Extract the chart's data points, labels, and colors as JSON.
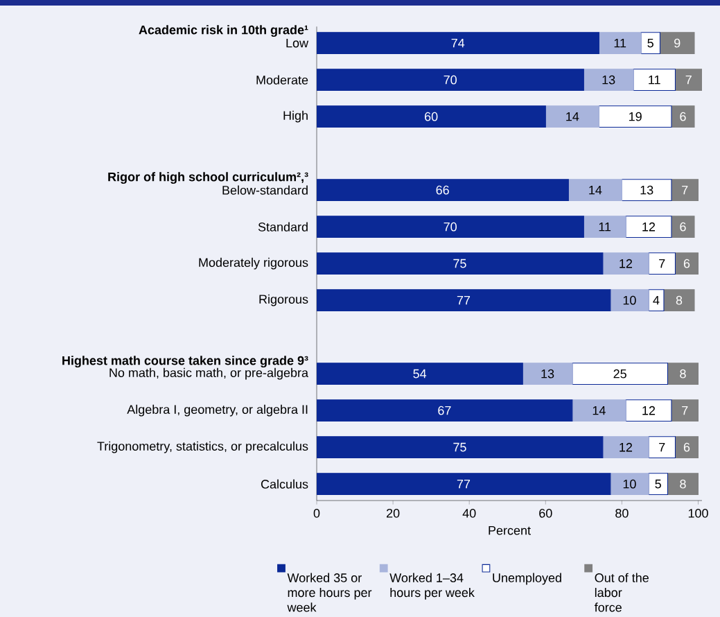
{
  "chart_data": {
    "type": "bar",
    "orientation": "horizontal",
    "stacked": true,
    "categories": [
      "Academic risk in 10th grade¹",
      "Low",
      "Moderate",
      "High",
      "Rigor of high school curriculum²,³",
      "Below-standard",
      "Standard",
      "Moderately rigorous",
      "Rigorous",
      "Highest math course taken since grade 9³",
      "No math, basic math, or pre-algebra",
      "Algebra I, geometry, or algebra II",
      "Trigonometry, statistics, or precalculus",
      "Calculus"
    ],
    "series": [
      {
        "name": "Worked 35 or more hours per week",
        "color": "#0b2996",
        "values": [
          null,
          74,
          70,
          60,
          null,
          66,
          70,
          75,
          77,
          null,
          54,
          67,
          75,
          77
        ]
      },
      {
        "name": "Worked 1–34 hours per week",
        "color": "#a8b4dc",
        "values": [
          null,
          11,
          13,
          14,
          null,
          14,
          11,
          12,
          10,
          null,
          13,
          14,
          12,
          10
        ]
      },
      {
        "name": "Unemployed",
        "color": "#ffffff",
        "values": [
          null,
          5,
          11,
          19,
          null,
          13,
          12,
          7,
          4,
          null,
          25,
          12,
          7,
          5
        ]
      },
      {
        "name": "Out of the labor force",
        "color": "#808080",
        "values": [
          null,
          9,
          7,
          6,
          null,
          7,
          6,
          6,
          8,
          null,
          8,
          7,
          6,
          8
        ]
      }
    ],
    "xlim": [
      0,
      101
    ],
    "xticks": [
      0,
      20,
      40,
      60,
      80,
      100
    ],
    "xlabel": "Percent",
    "data_labels": true,
    "legend": "bottom",
    "grid": false
  }
}
